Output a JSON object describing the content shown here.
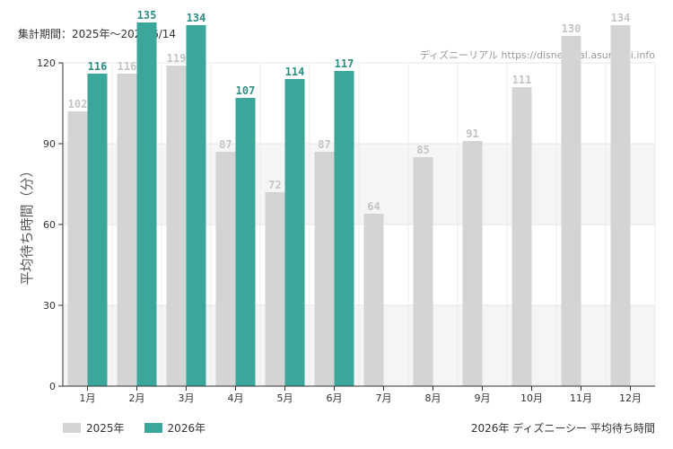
{
  "header": {
    "period": "集計期間：2025年～2026/6/14",
    "credit": "ディズニーリアル https://disneyreal.asumirai.info"
  },
  "footer": {
    "title": "2026年 ディズニーシー 平均待ち時間"
  },
  "chart_data": {
    "type": "bar",
    "ylabel": "平均待ち時間（分）",
    "ylim": [
      0,
      120
    ],
    "yticks": [
      0,
      30,
      60,
      90,
      120
    ],
    "categories": [
      "1月",
      "2月",
      "3月",
      "4月",
      "5月",
      "6月",
      "7月",
      "8月",
      "9月",
      "10月",
      "11月",
      "12月"
    ],
    "series": [
      {
        "name": "2025年",
        "color": "#d4d4d4",
        "label_color": "#c4c4c4",
        "values": [
          102,
          116,
          119,
          87,
          72,
          87,
          64,
          85,
          91,
          111,
          130,
          134
        ]
      },
      {
        "name": "2026年",
        "color": "#3aa79a",
        "label_color": "#2f8f84",
        "values": [
          116,
          135,
          134,
          107,
          114,
          117,
          null,
          null,
          null,
          null,
          null,
          null
        ]
      }
    ],
    "legend": "bottom-left",
    "grid": true,
    "shaded_bands": [
      [
        0,
        30
      ],
      [
        60,
        90
      ]
    ]
  }
}
